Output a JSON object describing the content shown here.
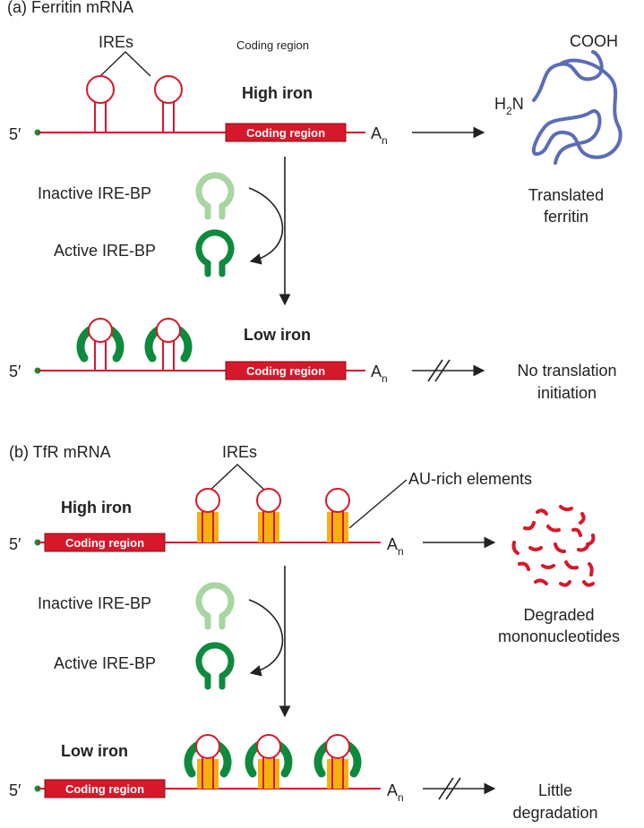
{
  "panel_a": {
    "title": "(a) Ferritin mRNA",
    "ires_label": "IREs",
    "coding_region_header": "Coding region",
    "high_iron": "High iron",
    "low_iron": "Low iron",
    "five_prime": "5′",
    "coding_region": "Coding region",
    "poly_a": "A",
    "poly_a_sub": "n",
    "inactive": "Inactive IRE-BP",
    "active": "Active IRE-BP",
    "cooh": "COOH",
    "h2n_h": "H",
    "h2n_2": "2",
    "h2n_n": "N",
    "product_high_1": "Translated",
    "product_high_2": "ferritin",
    "product_low_1": "No translation",
    "product_low_2": "initiation"
  },
  "panel_b": {
    "title": "(b) TfR mRNA",
    "ires_label": "IREs",
    "au_label": "AU-rich elements",
    "high_iron": "High iron",
    "low_iron": "Low iron",
    "five_prime": "5′",
    "coding_region": "Coding region",
    "poly_a": "A",
    "poly_a_sub": "n",
    "inactive": "Inactive IRE-BP",
    "active": "Active IRE-BP",
    "product_high_1": "Degraded",
    "product_high_2": "mononucleotides",
    "product_low_1": "Little",
    "product_low_2": "degradation"
  },
  "colors": {
    "mrna": "#d7182a",
    "inactive_bp": "#a8d5a2",
    "active_bp": "#0d8a3c",
    "au_rich": "#f5b20f",
    "protein": "#5b6db5",
    "node": "#1a8a3c"
  }
}
